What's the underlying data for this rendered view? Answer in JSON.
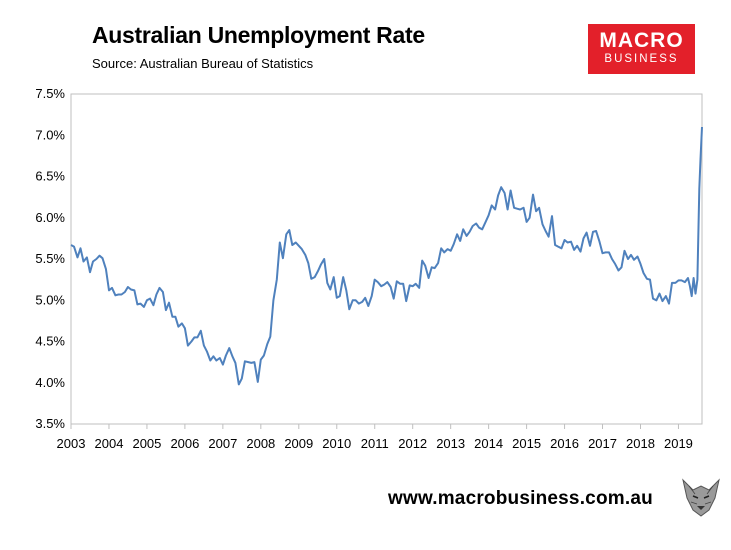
{
  "header": {
    "title": "Australian Unemployment Rate",
    "subtitle": "Source: Australian Bureau of Statistics"
  },
  "logo": {
    "line1": "MACRO",
    "line2": "BUSINESS"
  },
  "footer": {
    "url": "www.macrobusiness.com.au"
  },
  "colors": {
    "line": "#4f81bd",
    "logo_bg": "#e3202a",
    "axis": "#bfbfbf"
  },
  "chart_data": {
    "type": "line",
    "title": "Australian Unemployment Rate",
    "xlabel": "",
    "ylabel": "",
    "ylim": [
      3.5,
      7.5
    ],
    "xlim": [
      2003.0,
      2019.45
    ],
    "grid": false,
    "legend": "none",
    "y_ticks": [
      "3.5%",
      "4.0%",
      "4.5%",
      "5.0%",
      "5.5%",
      "6.0%",
      "6.5%",
      "7.0%",
      "7.5%"
    ],
    "y_tick_values": [
      3.5,
      4.0,
      4.5,
      5.0,
      5.5,
      6.0,
      6.5,
      7.0,
      7.5
    ],
    "x_ticks": [
      "2003",
      "2004",
      "2005",
      "2006",
      "2007",
      "2008",
      "2009",
      "2010",
      "2011",
      "2012",
      "2013",
      "2014",
      "2015",
      "2016",
      "2017",
      "2018",
      "2019"
    ],
    "x_tick_values": [
      2003,
      2004,
      2005,
      2006,
      2007,
      2008,
      2009,
      2010,
      2011,
      2012,
      2013,
      2014,
      2015,
      2016,
      2017,
      2018,
      2019
    ],
    "series": [
      {
        "points": [
          [
            2003.0,
            5.67
          ],
          [
            2003.08,
            5.65
          ],
          [
            2003.17,
            5.52
          ],
          [
            2003.25,
            5.63
          ],
          [
            2003.33,
            5.47
          ],
          [
            2003.42,
            5.52
          ],
          [
            2003.5,
            5.34
          ],
          [
            2003.58,
            5.47
          ],
          [
            2003.67,
            5.5
          ],
          [
            2003.75,
            5.54
          ],
          [
            2003.83,
            5.51
          ],
          [
            2003.92,
            5.38
          ],
          [
            2004.0,
            5.12
          ],
          [
            2004.08,
            5.15
          ],
          [
            2004.17,
            5.06
          ],
          [
            2004.25,
            5.07
          ],
          [
            2004.33,
            5.07
          ],
          [
            2004.42,
            5.1
          ],
          [
            2004.5,
            5.16
          ],
          [
            2004.58,
            5.13
          ],
          [
            2004.67,
            5.12
          ],
          [
            2004.75,
            4.95
          ],
          [
            2004.83,
            4.96
          ],
          [
            2004.92,
            4.92
          ],
          [
            2005.0,
            5.0
          ],
          [
            2005.08,
            5.02
          ],
          [
            2005.17,
            4.94
          ],
          [
            2005.25,
            5.07
          ],
          [
            2005.33,
            5.15
          ],
          [
            2005.42,
            5.1
          ],
          [
            2005.5,
            4.88
          ],
          [
            2005.58,
            4.97
          ],
          [
            2005.67,
            4.8
          ],
          [
            2005.75,
            4.8
          ],
          [
            2005.83,
            4.68
          ],
          [
            2005.92,
            4.72
          ],
          [
            2006.0,
            4.66
          ],
          [
            2006.08,
            4.45
          ],
          [
            2006.17,
            4.5
          ],
          [
            2006.25,
            4.55
          ],
          [
            2006.33,
            4.55
          ],
          [
            2006.42,
            4.63
          ],
          [
            2006.5,
            4.45
          ],
          [
            2006.58,
            4.38
          ],
          [
            2006.67,
            4.27
          ],
          [
            2006.75,
            4.32
          ],
          [
            2006.83,
            4.27
          ],
          [
            2006.92,
            4.3
          ],
          [
            2007.0,
            4.22
          ],
          [
            2007.08,
            4.33
          ],
          [
            2007.17,
            4.42
          ],
          [
            2007.25,
            4.32
          ],
          [
            2007.33,
            4.24
          ],
          [
            2007.42,
            3.98
          ],
          [
            2007.5,
            4.05
          ],
          [
            2007.58,
            4.26
          ],
          [
            2007.67,
            4.25
          ],
          [
            2007.75,
            4.24
          ],
          [
            2007.83,
            4.25
          ],
          [
            2007.92,
            4.01
          ],
          [
            2008.0,
            4.28
          ],
          [
            2008.08,
            4.33
          ],
          [
            2008.17,
            4.47
          ],
          [
            2008.25,
            4.56
          ],
          [
            2008.33,
            5.0
          ],
          [
            2008.42,
            5.25
          ],
          [
            2008.5,
            5.7
          ],
          [
            2008.58,
            5.51
          ],
          [
            2008.67,
            5.8
          ],
          [
            2008.75,
            5.85
          ],
          [
            2008.83,
            5.67
          ],
          [
            2008.92,
            5.7
          ],
          [
            2009.0,
            5.66
          ],
          [
            2009.08,
            5.62
          ],
          [
            2009.17,
            5.55
          ],
          [
            2009.25,
            5.45
          ],
          [
            2009.33,
            5.26
          ],
          [
            2009.42,
            5.28
          ],
          [
            2009.5,
            5.35
          ],
          [
            2009.58,
            5.43
          ],
          [
            2009.67,
            5.5
          ],
          [
            2009.75,
            5.21
          ],
          [
            2009.83,
            5.13
          ],
          [
            2009.92,
            5.28
          ],
          [
            2010.0,
            5.03
          ],
          [
            2010.08,
            5.05
          ],
          [
            2010.17,
            5.28
          ],
          [
            2010.25,
            5.12
          ],
          [
            2010.33,
            4.89
          ],
          [
            2010.42,
            5.0
          ],
          [
            2010.5,
            5.0
          ],
          [
            2010.58,
            4.96
          ],
          [
            2010.67,
            4.98
          ],
          [
            2010.75,
            5.03
          ],
          [
            2010.83,
            4.93
          ],
          [
            2010.92,
            5.05
          ],
          [
            2011.0,
            5.25
          ],
          [
            2011.08,
            5.22
          ],
          [
            2011.17,
            5.17
          ],
          [
            2011.25,
            5.19
          ],
          [
            2011.33,
            5.22
          ],
          [
            2011.42,
            5.16
          ],
          [
            2011.5,
            5.02
          ],
          [
            2011.58,
            5.23
          ],
          [
            2011.67,
            5.2
          ],
          [
            2011.75,
            5.2
          ],
          [
            2011.83,
            4.99
          ],
          [
            2011.92,
            5.18
          ],
          [
            2012.0,
            5.17
          ],
          [
            2012.08,
            5.2
          ],
          [
            2012.17,
            5.15
          ],
          [
            2012.25,
            5.48
          ],
          [
            2012.33,
            5.42
          ],
          [
            2012.42,
            5.27
          ],
          [
            2012.5,
            5.4
          ],
          [
            2012.58,
            5.39
          ],
          [
            2012.67,
            5.45
          ],
          [
            2012.75,
            5.63
          ],
          [
            2012.83,
            5.58
          ],
          [
            2012.92,
            5.62
          ],
          [
            2013.0,
            5.6
          ],
          [
            2013.08,
            5.68
          ],
          [
            2013.17,
            5.8
          ],
          [
            2013.25,
            5.72
          ],
          [
            2013.33,
            5.86
          ],
          [
            2013.42,
            5.78
          ],
          [
            2013.5,
            5.83
          ],
          [
            2013.58,
            5.9
          ],
          [
            2013.67,
            5.93
          ],
          [
            2013.75,
            5.88
          ],
          [
            2013.83,
            5.86
          ],
          [
            2013.92,
            5.95
          ],
          [
            2014.0,
            6.03
          ],
          [
            2014.08,
            6.15
          ],
          [
            2014.17,
            6.1
          ],
          [
            2014.25,
            6.27
          ],
          [
            2014.33,
            6.37
          ],
          [
            2014.42,
            6.3
          ],
          [
            2014.5,
            6.1
          ],
          [
            2014.58,
            6.33
          ],
          [
            2014.67,
            6.12
          ],
          [
            2014.75,
            6.11
          ],
          [
            2014.83,
            6.1
          ],
          [
            2014.92,
            6.12
          ],
          [
            2015.0,
            5.95
          ],
          [
            2015.08,
            6.0
          ],
          [
            2015.17,
            6.28
          ],
          [
            2015.25,
            6.08
          ],
          [
            2015.33,
            6.12
          ],
          [
            2015.42,
            5.92
          ],
          [
            2015.5,
            5.84
          ],
          [
            2015.58,
            5.77
          ],
          [
            2015.67,
            6.02
          ],
          [
            2015.75,
            5.67
          ],
          [
            2015.83,
            5.65
          ],
          [
            2015.92,
            5.63
          ],
          [
            2016.0,
            5.73
          ],
          [
            2016.08,
            5.7
          ],
          [
            2016.17,
            5.71
          ],
          [
            2016.25,
            5.61
          ],
          [
            2016.33,
            5.66
          ],
          [
            2016.42,
            5.59
          ],
          [
            2016.5,
            5.75
          ],
          [
            2016.58,
            5.82
          ],
          [
            2016.67,
            5.66
          ],
          [
            2016.75,
            5.83
          ],
          [
            2016.83,
            5.84
          ],
          [
            2016.92,
            5.71
          ],
          [
            2017.0,
            5.57
          ],
          [
            2017.08,
            5.58
          ],
          [
            2017.17,
            5.58
          ],
          [
            2017.25,
            5.5
          ],
          [
            2017.33,
            5.44
          ],
          [
            2017.42,
            5.36
          ],
          [
            2017.5,
            5.4
          ],
          [
            2017.58,
            5.6
          ],
          [
            2017.67,
            5.5
          ],
          [
            2017.75,
            5.55
          ],
          [
            2017.83,
            5.49
          ],
          [
            2017.92,
            5.53
          ],
          [
            2018.0,
            5.44
          ],
          [
            2018.08,
            5.33
          ],
          [
            2018.17,
            5.26
          ],
          [
            2018.25,
            5.25
          ],
          [
            2018.33,
            5.02
          ],
          [
            2018.42,
            5.0
          ],
          [
            2018.5,
            5.08
          ],
          [
            2018.58,
            4.99
          ],
          [
            2018.67,
            5.05
          ],
          [
            2018.75,
            4.96
          ],
          [
            2018.83,
            5.21
          ],
          [
            2018.92,
            5.21
          ],
          [
            2019.0,
            5.24
          ],
          [
            2019.08,
            5.24
          ],
          [
            2019.17,
            5.22
          ],
          [
            2019.25,
            5.27
          ],
          [
            2019.3,
            5.17
          ],
          [
            2019.35,
            5.05
          ],
          [
            2019.4,
            5.27
          ],
          [
            2019.45,
            5.08
          ],
          [
            2019.5,
            5.25
          ],
          [
            2019.55,
            6.35
          ],
          [
            2019.58,
            6.71
          ],
          [
            2019.62,
            7.1
          ]
        ]
      }
    ]
  }
}
